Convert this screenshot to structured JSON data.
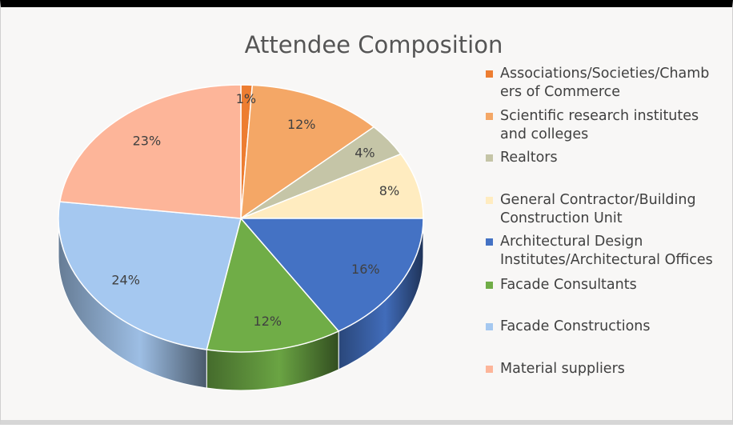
{
  "chart_data": {
    "type": "pie",
    "title": "Attendee Composition",
    "legend_position": "right",
    "slices": [
      {
        "label": "Associations/Societies/Chambers of Commerce",
        "legend_lines": [
          "Associations/Societies/Chamb",
          "ers of Commerce"
        ],
        "value": 1,
        "display": "1%",
        "color": "#ED7D31"
      },
      {
        "label": "Scientific research institutes and colleges",
        "legend_lines": [
          "Scientific research institutes",
          "and colleges"
        ],
        "value": 12,
        "display": "12%",
        "color": "#F4A766"
      },
      {
        "label": "Realtors",
        "legend_lines": [
          "Realtors"
        ],
        "value": 4,
        "display": "4%",
        "color": "#C5C5A7"
      },
      {
        "label": "General Contractor/Building Construction Unit",
        "legend_lines": [
          "General Contractor/Building",
          "Construction Unit"
        ],
        "value": 8,
        "display": "8%",
        "color": "#FFECC0"
      },
      {
        "label": "Architectural Design Institutes/Architectural Offices",
        "legend_lines": [
          "Architectural Design",
          "Institutes/Architectural Offices"
        ],
        "value": 16,
        "display": "16%",
        "color": "#4472C4"
      },
      {
        "label": "Facade Consultants",
        "legend_lines": [
          "Facade Consultants"
        ],
        "value": 12,
        "display": "12%",
        "color": "#70AD47"
      },
      {
        "label": "Facade Constructions",
        "legend_lines": [
          "Facade Constructions"
        ],
        "value": 24,
        "display": "24%",
        "color": "#A5C8F0"
      },
      {
        "label": "Material suppliers",
        "legend_lines": [
          "Material suppliers"
        ],
        "value": 23,
        "display": "23%",
        "color": "#FDB599"
      }
    ]
  }
}
